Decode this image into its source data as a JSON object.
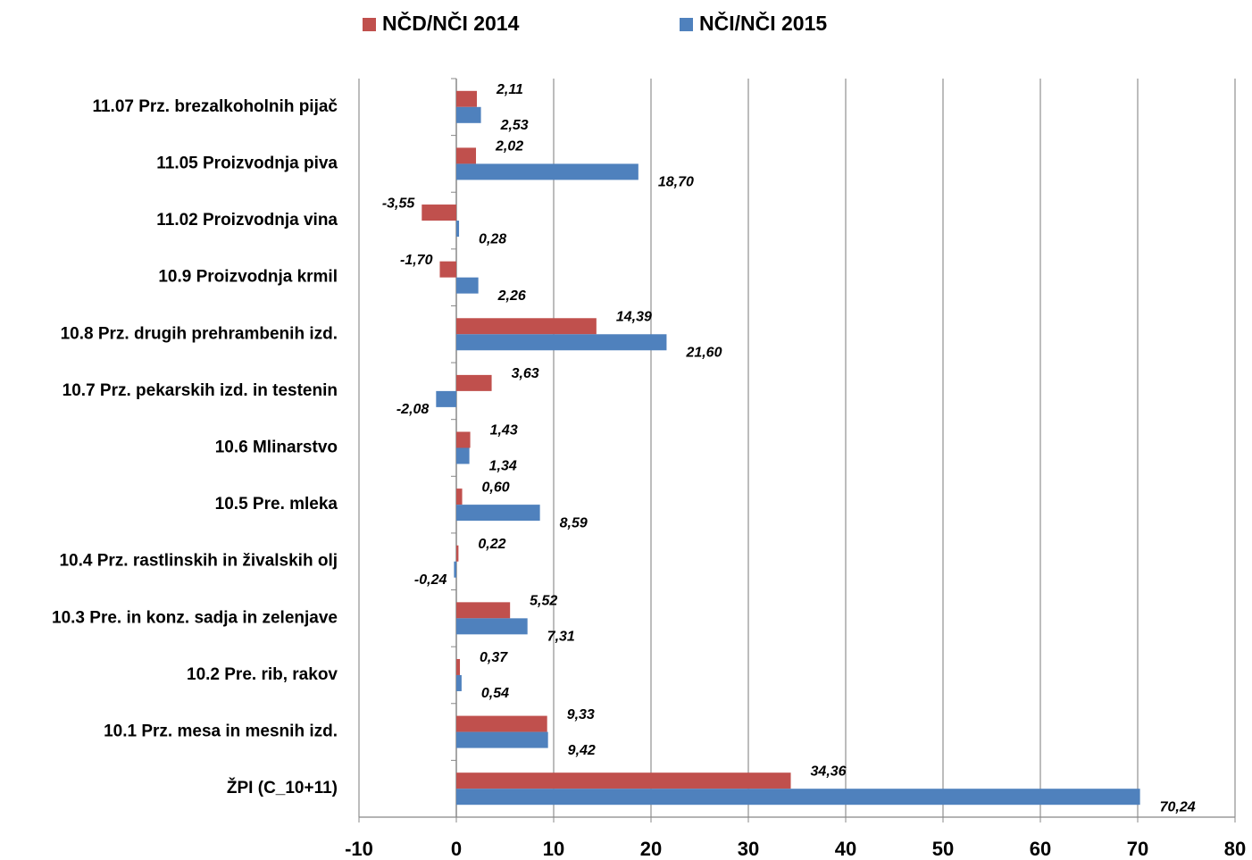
{
  "chart_data": {
    "type": "bar",
    "orientation": "horizontal",
    "categories": [
      "11.07 Prz. brezalkoholnih pijač",
      "11.05 Proizvodnja piva",
      "11.02 Proizvodnja vina",
      "10.9 Proizvodnja krmil",
      "10.8 Prz. drugih prehrambenih izd.",
      "10.7 Prz. pekarskih izd. in testenin",
      "10.6 Mlinarstvo",
      "10.5 Pre. mleka",
      "10.4 Prz. rastlinskih in živalskih olj",
      "10.3 Pre. in konz. sadja in zelenjave",
      "10.2 Pre. rib, rakov",
      "10.1 Prz. mesa in mesnih izd.",
      "ŽPI (C_10+11)"
    ],
    "series": [
      {
        "name": "NČD/NČI 2014",
        "color": "#c0504d",
        "values": [
          2.11,
          2.02,
          -3.55,
          -1.7,
          14.39,
          3.63,
          1.43,
          0.6,
          0.22,
          5.52,
          0.37,
          9.33,
          34.36
        ],
        "value_labels": [
          "2,11",
          "2,02",
          "-3,55",
          "-1,70",
          "14,39",
          "3,63",
          "1,43",
          "0,60",
          "0,22",
          "5,52",
          "0,37",
          "9,33",
          "34,36"
        ]
      },
      {
        "name": "NČI/NČI 2015",
        "color": "#4f81bd",
        "values": [
          2.53,
          18.7,
          0.28,
          2.26,
          21.6,
          -2.08,
          1.34,
          8.59,
          -0.24,
          7.31,
          0.54,
          9.42,
          70.24
        ],
        "value_labels": [
          "2,53",
          "18,70",
          "0,28",
          "2,26",
          "21,60",
          "-2,08",
          "1,34",
          "8,59",
          "-0,24",
          "7,31",
          "0,54",
          "9,42",
          "70,24"
        ]
      }
    ],
    "xlim": [
      -10,
      80
    ],
    "xticks": [
      -10,
      0,
      10,
      20,
      30,
      40,
      50,
      60,
      70,
      80
    ],
    "grid": true,
    "legend": "top"
  }
}
